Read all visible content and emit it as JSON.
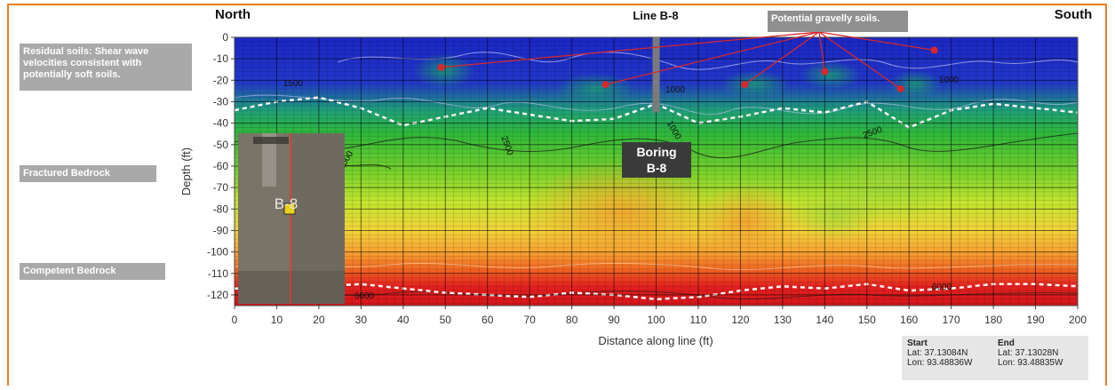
{
  "labels": {
    "north": "North",
    "south": "South",
    "line": "Line B-8",
    "potential": "Potential gravelly soils.",
    "residual": "Residual soils: Shear wave velocities consistent with potentially soft soils.",
    "fractured": "Fractured Bedrock",
    "competent": "Competent Bedrock",
    "boring_line1": "Boring",
    "boring_line2": "B-8",
    "inset_label": "B-8"
  },
  "coords": {
    "start_title": "Start",
    "start_lat": "Lat: 37.13084N",
    "start_lon": "Lon: 93.48836W",
    "end_title": "End",
    "end_lat": "Lat: 37.13028N",
    "end_lon": "Lon: 93.48835W"
  },
  "colors": {
    "frame": "#ef7d22",
    "label_box": "#a9a9a9",
    "arrow": "#d9262b"
  },
  "chart_data": {
    "type": "heatmap",
    "title": "Line B-8",
    "xlabel": "Distance along line (ft)",
    "ylabel": "Depth (ft)",
    "xlim": [
      0,
      200
    ],
    "ylim": [
      -125,
      0
    ],
    "xticks": [
      0,
      10,
      20,
      30,
      40,
      50,
      60,
      70,
      80,
      90,
      100,
      110,
      120,
      130,
      140,
      150,
      160,
      170,
      180,
      190,
      200
    ],
    "yticks": [
      0,
      -10,
      -20,
      -30,
      -40,
      -50,
      -60,
      -70,
      -80,
      -90,
      -100,
      -110,
      -120
    ],
    "grid": true,
    "contour_labels": [
      "1500",
      "2500",
      "1000",
      "2500",
      "1000",
      "1000",
      "1000",
      "6000",
      "6000"
    ],
    "boring": {
      "name": "B-8",
      "x": 100,
      "depth_top": 0,
      "depth_bottom": -35
    },
    "gravelly_soil_points": [
      {
        "x": 49,
        "y": -14
      },
      {
        "x": 88,
        "y": -22
      },
      {
        "x": 121,
        "y": -22
      },
      {
        "x": 140,
        "y": -16
      },
      {
        "x": 158,
        "y": -24
      },
      {
        "x": 166,
        "y": -6
      }
    ],
    "interfaces": [
      {
        "name": "residual-soil-base",
        "x": [
          0,
          10,
          20,
          30,
          40,
          50,
          60,
          70,
          80,
          90,
          100,
          110,
          120,
          130,
          140,
          150,
          160,
          170,
          180,
          190,
          200
        ],
        "y": [
          -34,
          -30,
          -28,
          -33,
          -41,
          -37,
          -33,
          -36,
          -39,
          -38,
          -31,
          -40,
          -37,
          -33,
          -35,
          -30,
          -42,
          -34,
          -31,
          -33,
          -35
        ]
      },
      {
        "name": "competent-bedrock-top",
        "x": [
          0,
          10,
          20,
          30,
          40,
          50,
          60,
          70,
          80,
          90,
          100,
          110,
          120,
          130,
          140,
          150,
          160,
          170,
          180,
          190,
          200
        ],
        "y": [
          -117,
          -117,
          -116,
          -115,
          -117,
          -119,
          -120,
          -121,
          -119,
          -120,
          -122,
          -121,
          -118,
          -116,
          -117,
          -115,
          -118,
          -117,
          -115,
          -115,
          -116
        ]
      }
    ]
  }
}
